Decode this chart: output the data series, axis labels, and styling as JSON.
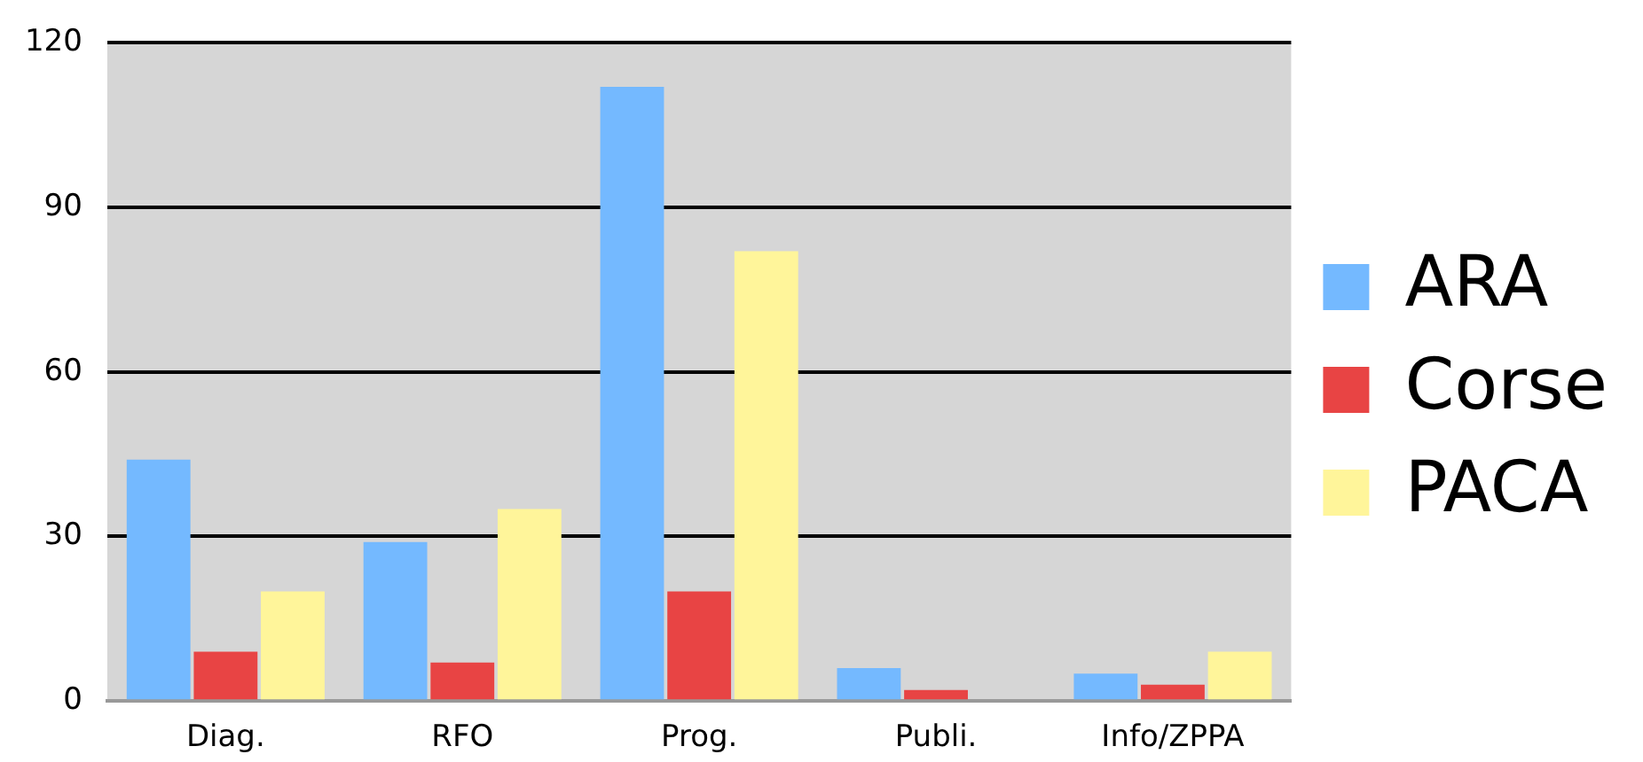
{
  "chart_data": {
    "type": "bar",
    "categories": [
      "Diag.",
      "RFO",
      "Prog.",
      "Publi.",
      "Info/ZPPA"
    ],
    "series": [
      {
        "name": "ARA",
        "color": "#74b9ff",
        "values": [
          44,
          29,
          112,
          6,
          5
        ]
      },
      {
        "name": "Corse",
        "color": "#e84444",
        "values": [
          9,
          7,
          20,
          2,
          3
        ]
      },
      {
        "name": "PACA",
        "color": "#fff59a",
        "values": [
          20,
          35,
          82,
          0,
          9
        ]
      }
    ],
    "ylim": [
      0,
      120
    ],
    "yticks": [
      0,
      30,
      60,
      90,
      120
    ],
    "grid": "y",
    "legend": "right"
  }
}
